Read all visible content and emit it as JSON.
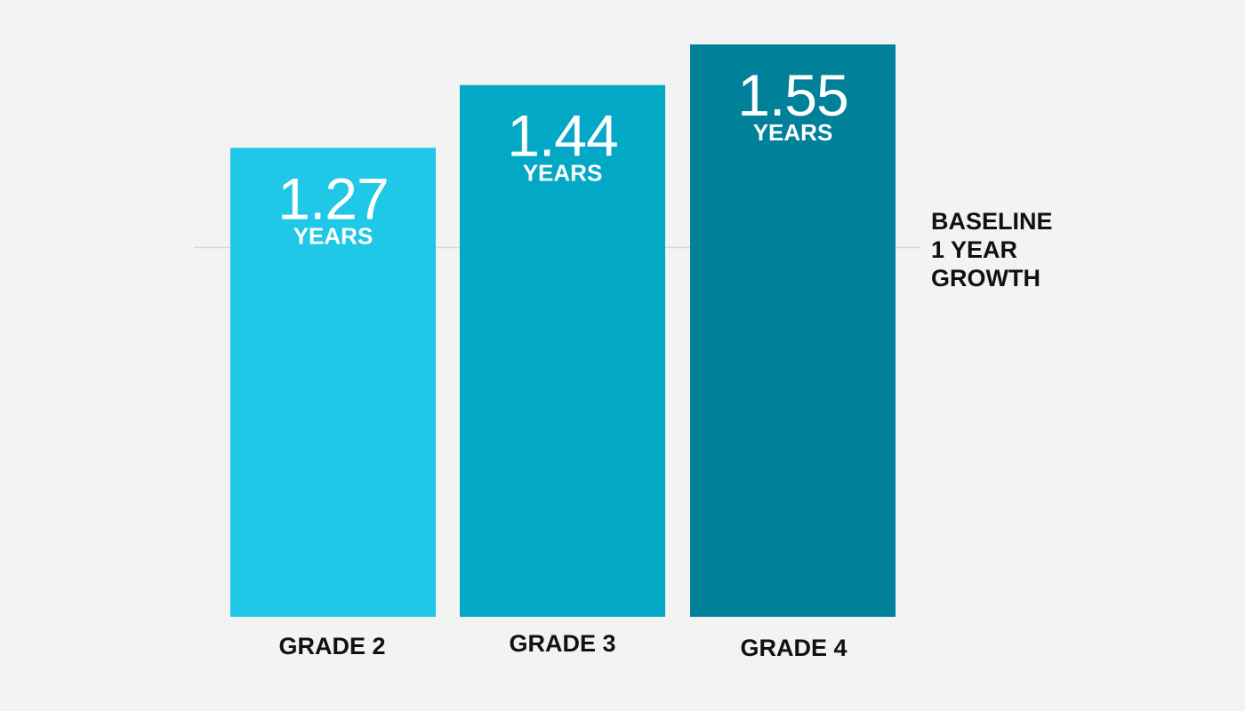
{
  "chart_data": {
    "type": "bar",
    "categories": [
      "GRADE 2",
      "GRADE 3",
      "GRADE 4"
    ],
    "values": [
      1.27,
      1.44,
      1.55
    ],
    "value_labels": [
      "1.27",
      "1.44",
      "1.55"
    ],
    "unit_label": "YEARS",
    "colors": [
      "#1fc8e6",
      "#02a8c5",
      "#008099"
    ],
    "ylim": [
      0,
      1.55
    ],
    "reference_line": {
      "value": 1,
      "label_lines": [
        "BASELINE",
        "1 YEAR",
        "GROWTH"
      ],
      "color": "#d6d9da"
    },
    "grid": false,
    "legend": "none",
    "title": "",
    "xlabel": "",
    "ylabel": ""
  }
}
